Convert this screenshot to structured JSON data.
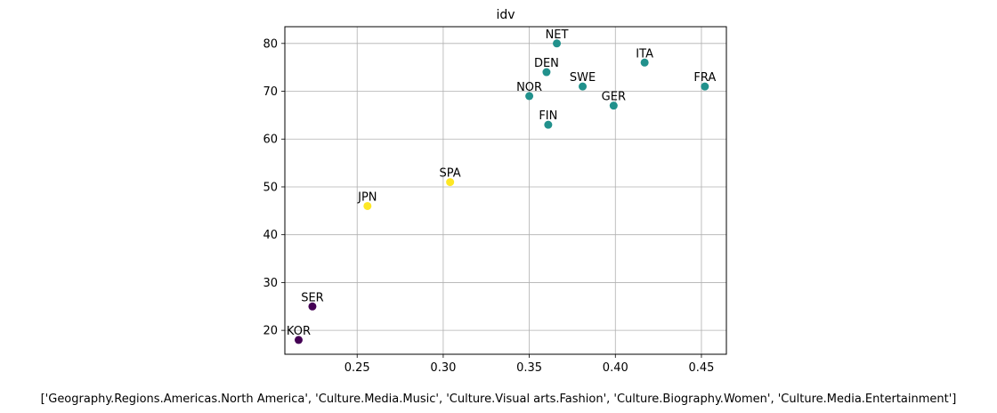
{
  "chart_data": {
    "type": "scatter",
    "title": "idv",
    "xlabel": "['Geography.Regions.Americas.North America', 'Culture.Media.Music', 'Culture.Visual arts.Fashion', 'Culture.Biography.Women', 'Culture.Media.Entertainment']",
    "ylabel": "",
    "xlim": [
      0.208,
      0.4645
    ],
    "ylim": [
      15,
      83.5
    ],
    "xticks": [
      0.25,
      0.3,
      0.35,
      0.4,
      0.45
    ],
    "xtick_labels": [
      "0.25",
      "0.30",
      "0.35",
      "0.40",
      "0.45"
    ],
    "yticks": [
      20,
      30,
      40,
      50,
      60,
      70,
      80
    ],
    "ytick_labels": [
      "20",
      "30",
      "40",
      "50",
      "60",
      "70",
      "80"
    ],
    "grid": true,
    "colors": {
      "purple": "#440154",
      "teal": "#21918c",
      "yellow": "#fde725"
    },
    "points": [
      {
        "label": "NET",
        "x": 0.366,
        "y": 80,
        "color": "#21918c"
      },
      {
        "label": "ITA",
        "x": 0.417,
        "y": 76,
        "color": "#21918c"
      },
      {
        "label": "DEN",
        "x": 0.36,
        "y": 74,
        "color": "#21918c"
      },
      {
        "label": "SWE",
        "x": 0.381,
        "y": 71,
        "color": "#21918c"
      },
      {
        "label": "FRA",
        "x": 0.452,
        "y": 71,
        "color": "#21918c"
      },
      {
        "label": "NOR",
        "x": 0.35,
        "y": 69,
        "color": "#21918c"
      },
      {
        "label": "GER",
        "x": 0.399,
        "y": 67,
        "color": "#21918c"
      },
      {
        "label": "FIN",
        "x": 0.361,
        "y": 63,
        "color": "#21918c"
      },
      {
        "label": "SPA",
        "x": 0.304,
        "y": 51,
        "color": "#fde725"
      },
      {
        "label": "JPN",
        "x": 0.256,
        "y": 46,
        "color": "#fde725"
      },
      {
        "label": "SER",
        "x": 0.224,
        "y": 25,
        "color": "#440154"
      },
      {
        "label": "KOR",
        "x": 0.216,
        "y": 18,
        "color": "#440154"
      }
    ]
  }
}
